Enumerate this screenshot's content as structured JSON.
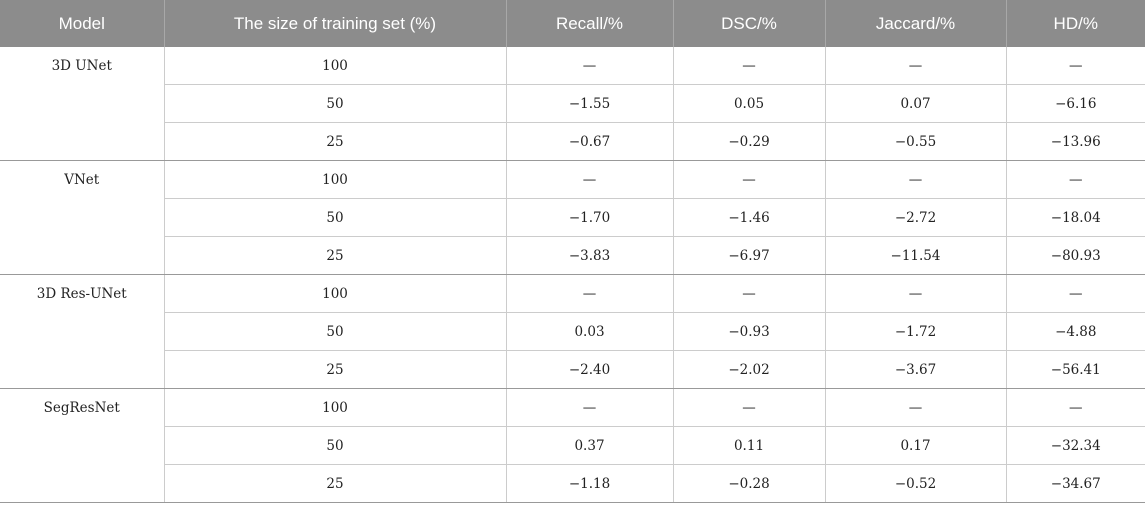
{
  "table": {
    "headers": [
      "Model",
      "The size of training set (%)",
      "Recall/%",
      "DSC/%",
      "Jaccard/%",
      "HD/%"
    ],
    "groups": [
      {
        "model": "3D UNet",
        "rows": [
          [
            "100",
            "—",
            "—",
            "—",
            "—"
          ],
          [
            "50",
            "−1.55",
            "0.05",
            "0.07",
            "−6.16"
          ],
          [
            "25",
            "−0.67",
            "−0.29",
            "−0.55",
            "−13.96"
          ]
        ]
      },
      {
        "model": "VNet",
        "rows": [
          [
            "100",
            "—",
            "—",
            "—",
            "—"
          ],
          [
            "50",
            "−1.70",
            "−1.46",
            "−2.72",
            "−18.04"
          ],
          [
            "25",
            "−3.83",
            "−6.97",
            "−11.54",
            "−80.93"
          ]
        ]
      },
      {
        "model": "3D Res-UNet",
        "rows": [
          [
            "100",
            "—",
            "—",
            "—",
            "—"
          ],
          [
            "50",
            "0.03",
            "−0.93",
            "−1.72",
            "−4.88"
          ],
          [
            "25",
            "−2.40",
            "−2.02",
            "−3.67",
            "−56.41"
          ]
        ]
      },
      {
        "model": "SegResNet",
        "rows": [
          [
            "100",
            "—",
            "—",
            "—",
            "—"
          ],
          [
            "50",
            "0.37",
            "0.11",
            "0.17",
            "−32.34"
          ],
          [
            "25",
            "−1.18",
            "−0.28",
            "−0.52",
            "−34.67"
          ]
        ]
      }
    ]
  }
}
